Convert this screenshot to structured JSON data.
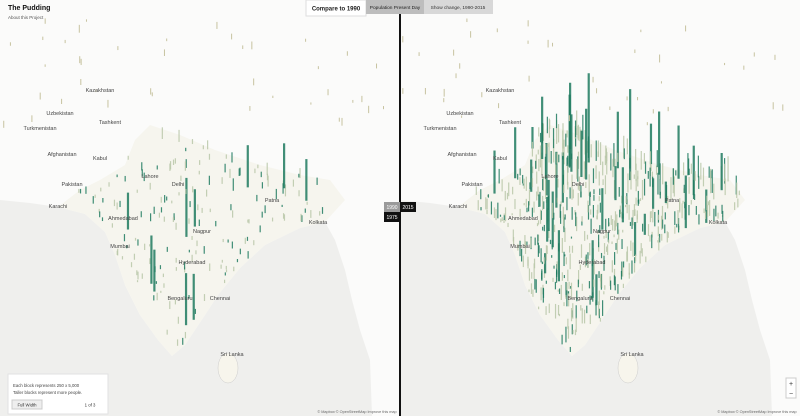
{
  "header": {
    "title": "The Pudding",
    "subtitle": "About this Project"
  },
  "controls": {
    "compare_button": "Compare to 1990",
    "tabs": [
      "Population Present Day",
      "Show change, 1990-2015"
    ]
  },
  "divider_labels": {
    "left": "1990",
    "right": "2015",
    "below": "1975"
  },
  "map_labels": [
    "Kazakhstan",
    "Uzbekistan",
    "Turkmenistan",
    "Tashkent",
    "Afghanistan",
    "Kabul",
    "Pakistan",
    "Lahore",
    "Delhi",
    "Karachi",
    "Ahmedabad",
    "Mumbai",
    "Nagpur",
    "Hyderabad",
    "Bengaluru",
    "Chennai",
    "Patna",
    "Kolkata",
    "Sri Lanka"
  ],
  "legend": {
    "lines": [
      "Each block represents 250 x 5,000",
      "Taller blocks represent more people."
    ],
    "button": "Full Width",
    "pager": "1 of 3"
  },
  "attribution": "© Mapbox © OpenStreetMap Improve this map",
  "zoom": {
    "in": "+",
    "out": "−"
  }
}
